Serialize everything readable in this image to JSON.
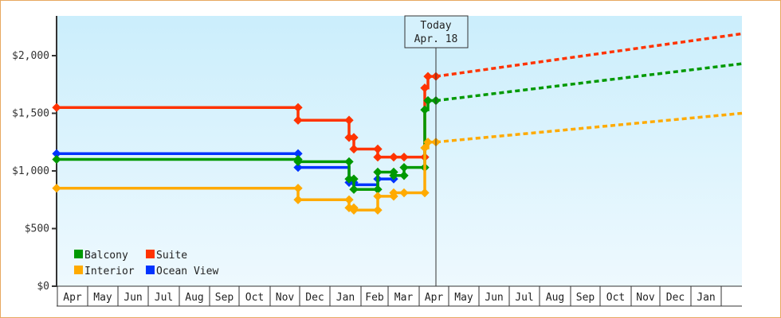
{
  "chart_data": {
    "type": "line",
    "subtype": "step-line with dashed projection",
    "title": "",
    "xlabel": "",
    "ylabel": "",
    "ylim": [
      0,
      2350
    ],
    "y_ticks": [
      {
        "value": 0,
        "label": "$0"
      },
      {
        "value": 500,
        "label": "$500"
      },
      {
        "value": 1000,
        "label": "$1,000"
      },
      {
        "value": 1500,
        "label": "$1,500"
      },
      {
        "value": 2000,
        "label": "$2,000"
      }
    ],
    "x_months": [
      "Apr",
      "May",
      "Jun",
      "Jul",
      "Aug",
      "Sep",
      "Oct",
      "Nov",
      "Dec",
      "Jan",
      "Feb",
      "Mar",
      "Apr",
      "May",
      "Jun",
      "Jul",
      "Aug",
      "Sep",
      "Oct",
      "Nov",
      "Dec",
      "Jan"
    ],
    "grid": false,
    "legend_position": "bottom-left inside",
    "today_marker": {
      "line1": "Today",
      "line2": "Apr. 18"
    },
    "series": [
      {
        "name": "Balcony",
        "color": "#009900",
        "points": [
          [
            "Apr start",
            1100
          ],
          [
            "Nov end",
            1100
          ],
          [
            "Nov end",
            1080
          ],
          [
            "Jan mid",
            1080
          ],
          [
            "Jan mid",
            930
          ],
          [
            "Jan late",
            930
          ],
          [
            "Jan late",
            840
          ],
          [
            "Feb mid",
            840
          ],
          [
            "Feb mid",
            990
          ],
          [
            "Mar start",
            990
          ],
          [
            "Mar start",
            960
          ],
          [
            "Mar mid",
            960
          ],
          [
            "Mar mid",
            1030
          ],
          [
            "Mar end",
            1030
          ],
          [
            "Mar end",
            1530
          ],
          [
            "Apr early",
            1530
          ],
          [
            "Apr early",
            1610
          ],
          [
            "Today",
            1610
          ]
        ],
        "projection": [
          [
            "Today",
            1610
          ],
          [
            "Jan end +",
            1930
          ]
        ]
      },
      {
        "name": "Suite",
        "color": "#ff3300",
        "points": [
          [
            "Apr start",
            1550
          ],
          [
            "Nov end",
            1550
          ],
          [
            "Nov end",
            1440
          ],
          [
            "Jan mid",
            1440
          ],
          [
            "Jan mid",
            1290
          ],
          [
            "Jan late",
            1290
          ],
          [
            "Jan late",
            1190
          ],
          [
            "Feb mid",
            1190
          ],
          [
            "Feb mid",
            1120
          ],
          [
            "Mar end",
            1120
          ],
          [
            "Mar end",
            1720
          ],
          [
            "Apr early",
            1720
          ],
          [
            "Apr early",
            1820
          ],
          [
            "Today",
            1820
          ]
        ],
        "projection": [
          [
            "Today",
            1820
          ],
          [
            "Jan end +",
            2190
          ]
        ]
      },
      {
        "name": "Interior",
        "color": "#ffaa00",
        "points": [
          [
            "Apr start",
            850
          ],
          [
            "Nov end",
            850
          ],
          [
            "Nov end",
            750
          ],
          [
            "Jan mid",
            750
          ],
          [
            "Jan mid",
            680
          ],
          [
            "Jan late",
            680
          ],
          [
            "Jan late",
            660
          ],
          [
            "Feb mid",
            660
          ],
          [
            "Feb mid",
            780
          ],
          [
            "Mar start",
            780
          ],
          [
            "Mar start",
            810
          ],
          [
            "Mar end",
            810
          ],
          [
            "Mar end",
            1200
          ],
          [
            "Apr early",
            1200
          ],
          [
            "Apr early",
            1250
          ],
          [
            "Today",
            1250
          ]
        ],
        "projection": [
          [
            "Today",
            1250
          ],
          [
            "Jan end +",
            1500
          ]
        ]
      },
      {
        "name": "Ocean View",
        "color": "#0033ff",
        "points": [
          [
            "Apr start",
            1150
          ],
          [
            "Nov end",
            1150
          ],
          [
            "Nov end",
            1030
          ],
          [
            "Jan mid",
            1030
          ],
          [
            "Jan mid",
            900
          ],
          [
            "Jan late",
            900
          ],
          [
            "Jan late",
            880
          ],
          [
            "Feb mid",
            880
          ],
          [
            "Feb mid",
            930
          ],
          [
            "Mar start",
            930
          ]
        ],
        "projection": []
      }
    ]
  },
  "legend": {
    "items": [
      {
        "label": "Balcony",
        "color": "#009900"
      },
      {
        "label": "Suite",
        "color": "#ff3300"
      },
      {
        "label": "Interior",
        "color": "#ffaa00"
      },
      {
        "label": "Ocean View",
        "color": "#0033ff"
      }
    ]
  },
  "today": {
    "line1": "Today",
    "line2": "Apr. 18"
  }
}
